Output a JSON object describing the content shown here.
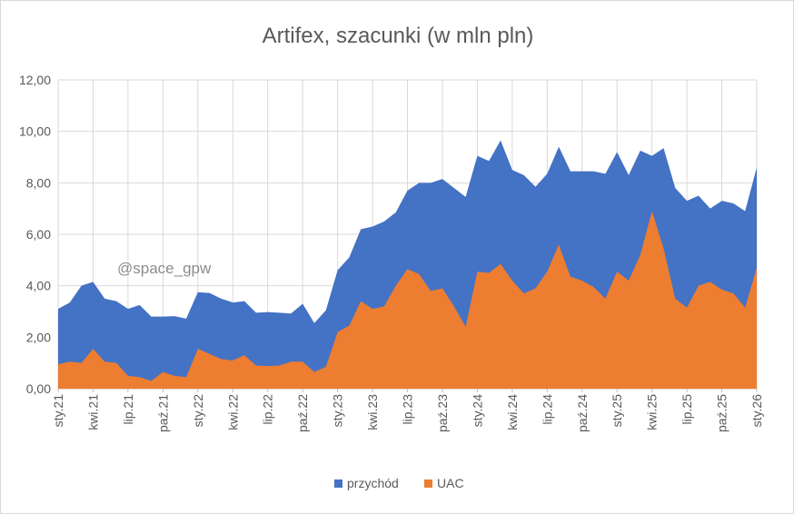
{
  "chart_data": {
    "type": "area",
    "title": "Artifex, szacunki (w mln pln)",
    "watermark": "@space_gpw",
    "ylim": [
      0,
      12
    ],
    "yticks": [
      "0,00",
      "2,00",
      "4,00",
      "6,00",
      "8,00",
      "10,00",
      "12,00"
    ],
    "x_tick_labels": [
      {
        "index": 0,
        "label": "sty.21"
      },
      {
        "index": 3,
        "label": "kwi.21"
      },
      {
        "index": 6,
        "label": "lip.21"
      },
      {
        "index": 9,
        "label": "paź.21"
      },
      {
        "index": 12,
        "label": "sty.22"
      },
      {
        "index": 15,
        "label": "kwi.22"
      },
      {
        "index": 18,
        "label": "lip.22"
      },
      {
        "index": 21,
        "label": "paź.22"
      },
      {
        "index": 24,
        "label": "sty.23"
      },
      {
        "index": 27,
        "label": "kwi.23"
      },
      {
        "index": 30,
        "label": "lip.23"
      },
      {
        "index": 33,
        "label": "paź.23"
      },
      {
        "index": 36,
        "label": "sty.24"
      },
      {
        "index": 39,
        "label": "kwi.24"
      },
      {
        "index": 42,
        "label": "lip.24"
      },
      {
        "index": 45,
        "label": "paź.24"
      },
      {
        "index": 48,
        "label": "sty.25"
      },
      {
        "index": 51,
        "label": "kwi.25"
      },
      {
        "index": 54,
        "label": "lip.25"
      },
      {
        "index": 57,
        "label": "paź.25"
      },
      {
        "index": 60,
        "label": "sty.26"
      }
    ],
    "series": [
      {
        "name": "przychód",
        "color": "#4472c4",
        "values": [
          3.1,
          3.35,
          4.0,
          4.15,
          3.5,
          3.4,
          3.1,
          3.25,
          2.8,
          2.8,
          2.82,
          2.72,
          3.75,
          3.72,
          3.5,
          3.35,
          3.4,
          2.95,
          2.98,
          2.95,
          2.92,
          3.3,
          2.55,
          3.05,
          4.6,
          5.1,
          6.2,
          6.3,
          6.5,
          6.85,
          7.7,
          8.0,
          8.0,
          8.15,
          7.8,
          7.45,
          9.05,
          8.85,
          9.65,
          8.5,
          8.3,
          7.85,
          8.35,
          9.4,
          8.45,
          8.45,
          8.45,
          8.35,
          9.2,
          8.3,
          9.25,
          9.05,
          9.35,
          7.8,
          7.3,
          7.5,
          7.0,
          7.3,
          7.2,
          6.9,
          8.6
        ]
      },
      {
        "name": "UAC",
        "color": "#ed7d31",
        "values": [
          0.95,
          1.05,
          1.0,
          1.55,
          1.05,
          1.0,
          0.5,
          0.45,
          0.3,
          0.65,
          0.5,
          0.45,
          1.55,
          1.35,
          1.15,
          1.1,
          1.3,
          0.9,
          0.88,
          0.9,
          1.05,
          1.05,
          0.65,
          0.85,
          2.2,
          2.45,
          3.4,
          3.1,
          3.2,
          4.0,
          4.65,
          4.45,
          3.8,
          3.9,
          3.2,
          2.4,
          4.55,
          4.5,
          4.85,
          4.2,
          3.7,
          3.9,
          4.55,
          5.6,
          4.35,
          4.2,
          3.95,
          3.5,
          4.55,
          4.2,
          5.2,
          6.9,
          5.45,
          3.5,
          3.15,
          4.0,
          4.15,
          3.85,
          3.7,
          3.15,
          4.7
        ]
      }
    ],
    "legend": [
      "przychód",
      "UAC"
    ],
    "legend_position": "bottom",
    "grid": "horizontal"
  }
}
